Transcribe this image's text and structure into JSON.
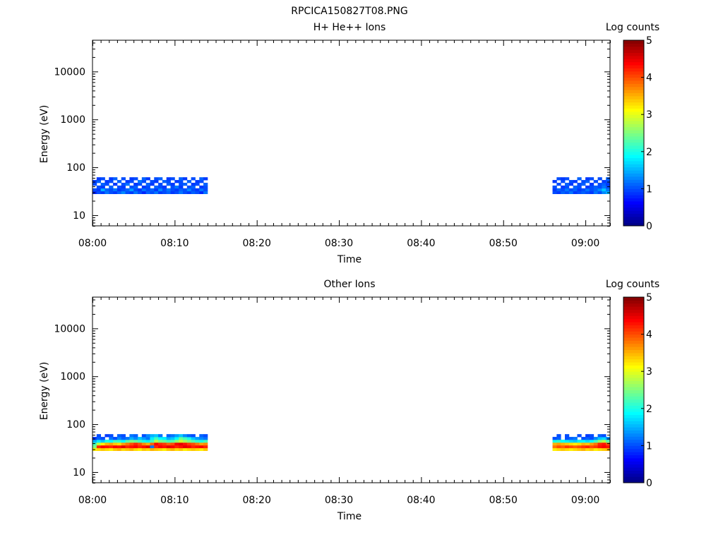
{
  "figure_title": "RPCICA150827T08.PNG",
  "colormap": [
    "#00007f",
    "#0000ff",
    "#007fff",
    "#00ffff",
    "#7fff7f",
    "#ffff00",
    "#ff7f00",
    "#ff0000",
    "#7f0000"
  ],
  "chart_data": [
    {
      "type": "heatmap",
      "title": "H+ He++ Ions",
      "xlabel": "Time",
      "ylabel": "Energy (eV)",
      "x_range": [
        "08:00",
        "09:03"
      ],
      "x_ticks": [
        "08:00",
        "08:10",
        "08:20",
        "08:30",
        "08:40",
        "08:50",
        "09:00"
      ],
      "y_scale": "log",
      "ylim": [
        6,
        45000
      ],
      "y_ticks": [
        "10",
        "100",
        "1000",
        "10000"
      ],
      "colorbar": {
        "label": "Log counts",
        "range": [
          0,
          5
        ],
        "ticks": [
          "0",
          "1",
          "2",
          "3",
          "4",
          "5"
        ]
      },
      "energy_band_eV": [
        28,
        62
      ],
      "data_segments": [
        {
          "start": "08:00",
          "end": "08:14",
          "rows": [
            [
              0.8,
              1.0,
              0.9,
              1.2,
              1.0,
              0.9,
              1.1,
              1.3,
              1.0,
              0.9,
              1.2,
              1.0,
              0.8,
              1.1,
              1.0,
              1.2,
              0.9,
              1.0,
              1.1,
              0.9,
              1.0,
              1.2,
              1.0,
              0.9,
              1.1,
              1.0,
              0.8,
              1.2
            ],
            [
              1.0,
              0.9,
              1.5,
              1.1,
              1.0,
              1.2,
              0.9,
              1.0,
              1.1,
              1.4,
              1.0,
              0.9,
              1.2,
              1.0,
              1.1,
              0.9,
              1.3,
              1.0,
              1.2,
              1.0,
              0.9,
              1.1,
              1.0,
              1.3,
              1.0,
              0.9,
              1.2,
              1.0
            ],
            [
              null,
              1.0,
              0.9,
              null,
              1.1,
              null,
              1.0,
              0.9,
              null,
              1.0,
              1.1,
              null,
              0.9,
              1.0,
              null,
              1.1,
              1.0,
              0.9,
              null,
              1.0,
              1.2,
              0.9,
              null,
              1.0,
              1.1,
              null,
              0.9,
              1.0
            ],
            [
              1.0,
              null,
              1.1,
              1.0,
              null,
              0.9,
              null,
              1.0,
              1.2,
              null,
              0.9,
              1.0,
              null,
              1.1,
              0.9,
              null,
              1.0,
              null,
              1.1,
              0.9,
              null,
              1.0,
              1.1,
              null,
              0.9,
              1.0,
              null,
              1.1
            ],
            [
              0.9,
              1.1,
              null,
              0.9,
              1.0,
              null,
              1.1,
              null,
              0.9,
              1.0,
              null,
              1.2,
              1.0,
              null,
              1.0,
              0.9,
              null,
              1.1,
              1.0,
              null,
              0.9,
              1.0,
              null,
              1.1,
              null,
              0.9,
              1.0,
              null
            ],
            [
              null,
              0.9,
              1.0,
              null,
              0.9,
              1.1,
              null,
              1.0,
              null,
              0.9,
              1.0,
              null,
              1.1,
              0.9,
              null,
              1.0,
              1.1,
              null,
              0.9,
              1.0,
              null,
              1.1,
              0.9,
              null,
              1.0,
              null,
              1.1,
              0.9
            ]
          ]
        },
        {
          "start": "08:56",
          "end": "09:03",
          "rows": [
            [
              1.0,
              0.9,
              1.1,
              1.0,
              1.2,
              0.9,
              1.0,
              1.1,
              1.0,
              0.9,
              1.2,
              1.0,
              1.3,
              1.5
            ],
            [
              0.9,
              1.1,
              1.0,
              1.2,
              1.0,
              1.1,
              0.9,
              1.0,
              1.2,
              1.0,
              1.1,
              1.3,
              1.6,
              1.2
            ],
            [
              1.0,
              null,
              0.9,
              1.0,
              null,
              1.1,
              1.0,
              null,
              0.9,
              1.0,
              1.1,
              1.0,
              1.2,
              1.0
            ],
            [
              null,
              1.0,
              null,
              1.1,
              0.9,
              null,
              1.0,
              1.1,
              null,
              0.9,
              null,
              1.0,
              1.1,
              0.9
            ],
            [
              0.9,
              null,
              1.0,
              null,
              1.0,
              0.9,
              null,
              1.0,
              1.1,
              null,
              1.0,
              null,
              0.9,
              1.0
            ],
            [
              null,
              1.0,
              0.9,
              1.0,
              null,
              null,
              1.1,
              null,
              0.9,
              1.0,
              null,
              1.0,
              null,
              1.1
            ]
          ]
        }
      ]
    },
    {
      "type": "heatmap",
      "title": "Other Ions",
      "xlabel": "Time",
      "ylabel": "Energy (eV)",
      "x_range": [
        "08:00",
        "09:03"
      ],
      "x_ticks": [
        "08:00",
        "08:10",
        "08:20",
        "08:30",
        "08:40",
        "08:50",
        "09:00"
      ],
      "y_scale": "log",
      "ylim": [
        6,
        45000
      ],
      "y_ticks": [
        "10",
        "100",
        "1000",
        "10000"
      ],
      "colorbar": {
        "label": "Log counts",
        "range": [
          0,
          5
        ],
        "ticks": [
          "0",
          "1",
          "2",
          "3",
          "4",
          "5"
        ]
      },
      "energy_band_eV": [
        28,
        62
      ],
      "data_segments": [
        {
          "start": "08:00",
          "end": "08:14",
          "rows": [
            [
              3.2,
              3.3,
              3.4,
              3.3,
              3.2,
              3.4,
              3.5,
              3.3,
              3.4,
              3.5,
              3.3,
              3.2,
              3.4,
              3.3,
              3.5,
              3.4,
              3.3,
              3.2,
              3.4,
              3.5,
              3.3,
              3.4,
              3.2,
              3.3,
              3.4,
              3.3,
              3.2,
              3.4
            ],
            [
              2.5,
              4.2,
              4.4,
              4.3,
              4.2,
              4.4,
              4.3,
              4.5,
              4.2,
              4.3,
              4.4,
              4.2,
              4.3,
              4.5,
              1.2,
              4.2,
              4.4,
              4.3,
              4.5,
              4.4,
              4.2,
              4.3,
              4.5,
              4.4,
              4.2,
              4.3,
              4.4,
              4.2
            ],
            [
              2.2,
              2.8,
              3.2,
              3.5,
              3.6,
              3.4,
              3.3,
              3.6,
              3.8,
              4.0,
              4.2,
              4.0,
              3.7,
              3.5,
              3.9,
              4.4,
              4.2,
              4.1,
              3.9,
              4.0,
              4.4,
              4.5,
              4.3,
              4.1,
              4.0,
              3.8,
              3.6,
              3.7
            ],
            [
              1.5,
              1.8,
              1.6,
              2.0,
              1.9,
              2.2,
              2.1,
              1.9,
              2.3,
              2.5,
              2.4,
              2.2,
              2.0,
              1.8,
              2.2,
              2.8,
              2.5,
              2.4,
              2.2,
              2.3,
              2.6,
              2.9,
              2.7,
              2.5,
              2.3,
              2.1,
              2.0,
              2.2
            ],
            [
              0.9,
              1.1,
              1.0,
              null,
              1.2,
              1.0,
              1.3,
              1.1,
              1.2,
              1.5,
              1.3,
              1.6,
              1.4,
              1.2,
              1.8,
              2.2,
              1.9,
              1.8,
              1.5,
              1.6,
              1.9,
              2.4,
              2.2,
              2.0,
              1.6,
              1.4,
              1.3,
              1.2
            ],
            [
              null,
              1.0,
              null,
              0.9,
              1.0,
              null,
              1.1,
              1.0,
              null,
              1.2,
              1.1,
              null,
              1.0,
              1.3,
              1.5,
              1.6,
              1.2,
              null,
              1.1,
              1.2,
              1.4,
              1.6,
              1.3,
              1.1,
              1.0,
              null,
              1.1,
              1.0
            ]
          ]
        },
        {
          "start": "08:56",
          "end": "09:03",
          "rows": [
            [
              3.2,
              3.3,
              3.4,
              3.3,
              3.2,
              3.3,
              3.4,
              3.5,
              3.3,
              3.4,
              3.2,
              3.3,
              3.4,
              3.5
            ],
            [
              3.8,
              4.0,
              3.9,
              4.1,
              4.0,
              3.9,
              4.0,
              4.1,
              4.2,
              4.0,
              4.1,
              4.3,
              4.4,
              4.3
            ],
            [
              3.5,
              3.6,
              3.5,
              3.4,
              3.3,
              3.2,
              3.3,
              3.5,
              3.4,
              3.6,
              3.8,
              4.2,
              4.3,
              4.0
            ],
            [
              2.0,
              2.1,
              1.9,
              1.8,
              1.7,
              1.6,
              1.8,
              1.9,
              1.7,
              1.9,
              2.2,
              2.6,
              2.8,
              2.3
            ],
            [
              1.0,
              1.1,
              null,
              1.0,
              1.1,
              1.2,
              null,
              1.0,
              1.1,
              1.0,
              1.3,
              1.6,
              1.7,
              1.3
            ],
            [
              null,
              1.0,
              null,
              1.0,
              null,
              null,
              1.0,
              null,
              0.9,
              1.0,
              null,
              1.1,
              1.0,
              null
            ]
          ]
        }
      ]
    }
  ]
}
